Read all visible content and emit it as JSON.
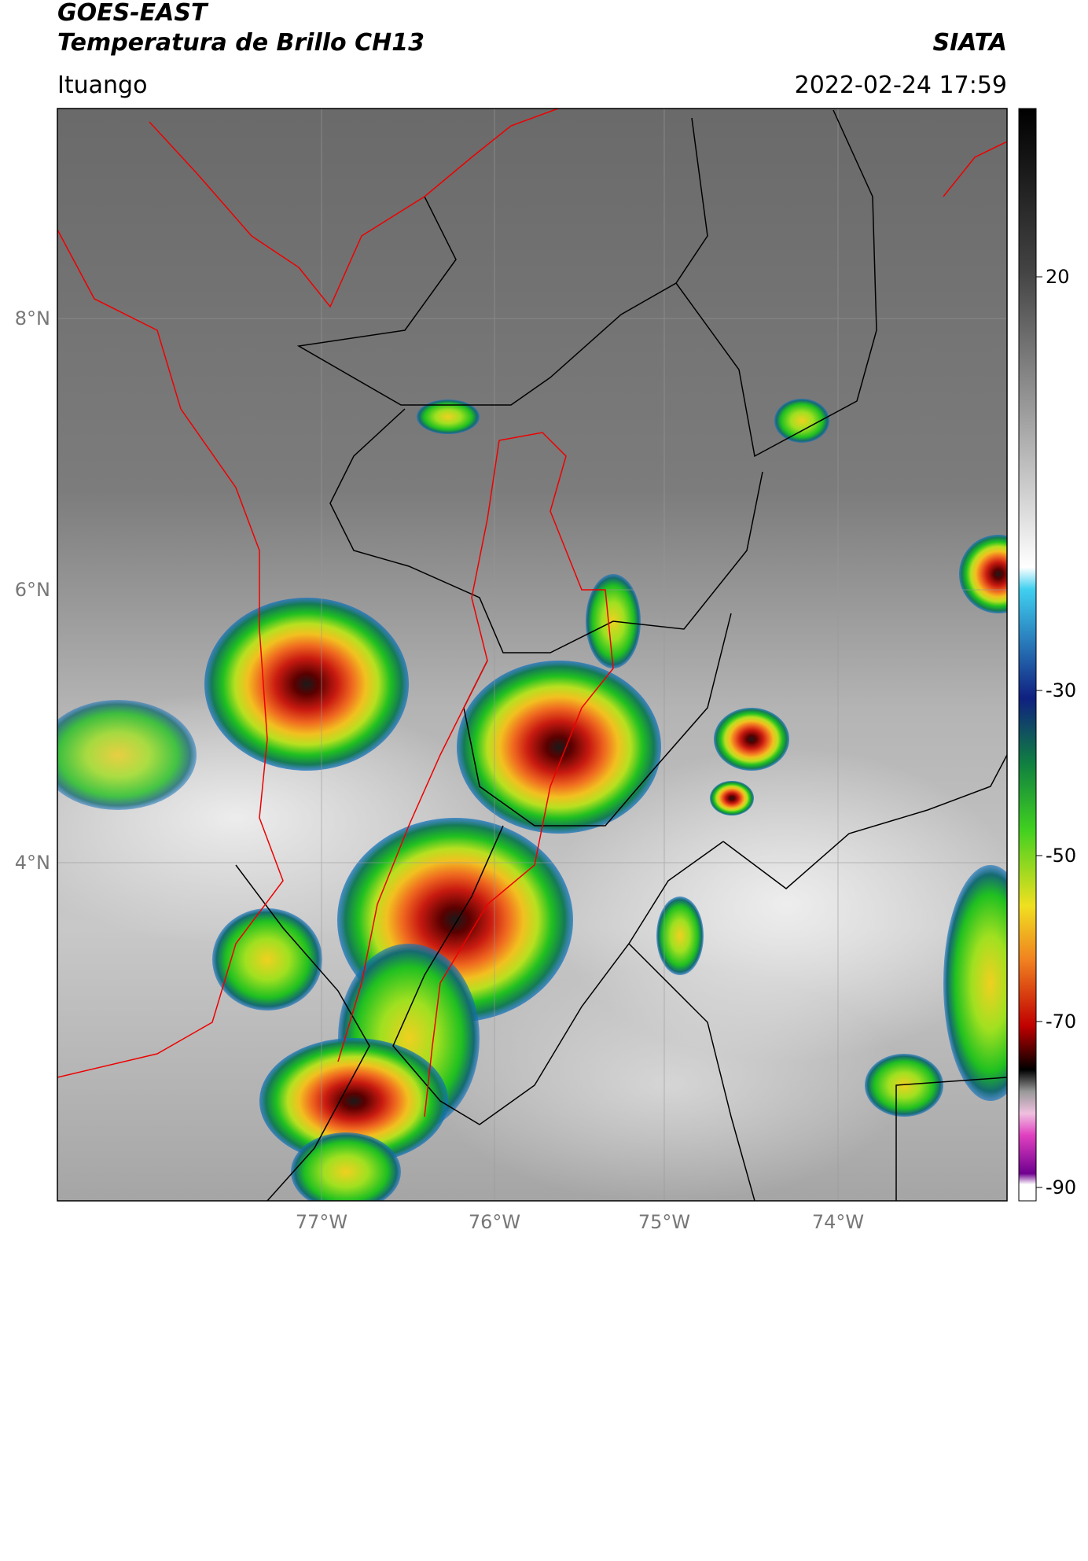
{
  "header": {
    "source": "GOES-EAST",
    "title": "Temperatura de Brillo CH13",
    "org": "SIATA",
    "location": "Ituango",
    "datetime": "2022-02-24 17:59"
  },
  "map": {
    "lat_ticks": [
      "8°N",
      "6°N",
      "4°N"
    ],
    "lon_ticks": [
      "77°W",
      "76°W",
      "75°W",
      "74°W"
    ]
  },
  "colorbar": {
    "ticks": [
      20,
      -30,
      -50,
      -70,
      -90
    ]
  }
}
